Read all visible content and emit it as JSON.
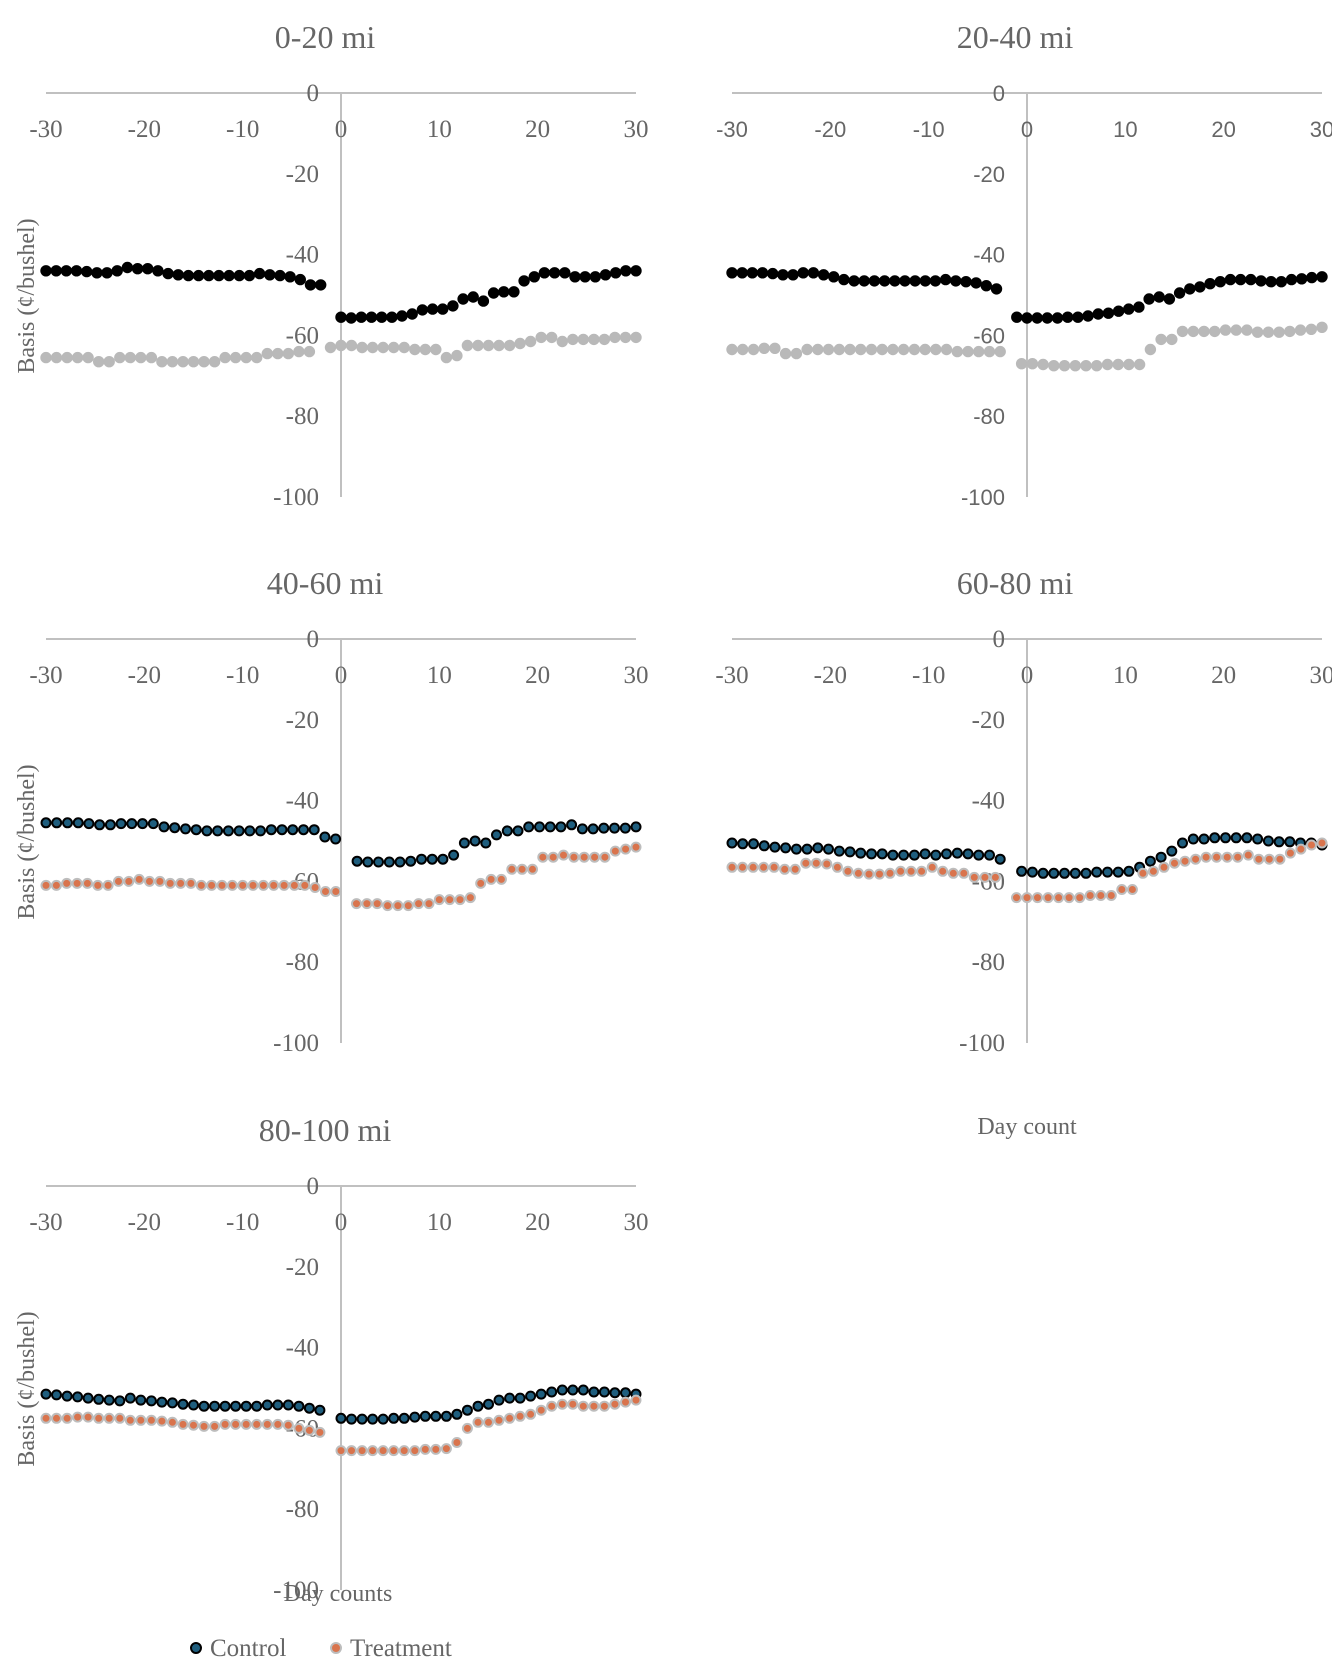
{
  "figure": {
    "y_axis_label": "Basis (¢/bushel)",
    "day_count_label": "Day count",
    "day_counts_label": "Day counts"
  },
  "legend": {
    "items": [
      {
        "label": "Control"
      },
      {
        "label": "Treatment"
      }
    ]
  },
  "colors": {
    "axis": "#c0c0c0",
    "text": "#666666",
    "panel1_control": "#000000",
    "panel1_treatment": "#b9b9b9",
    "blue_fill": "#1f5e7e",
    "blue_stroke": "#000000",
    "orange_fill": "#d9744d",
    "orange_stroke": "#bdbdbd"
  },
  "chart_data": [
    {
      "type": "scatter",
      "title": "0-20 mi",
      "xlim": [
        -30,
        30
      ],
      "ylim": [
        -100,
        0
      ],
      "xticks": [
        -30,
        -20,
        -10,
        0,
        10,
        20,
        30
      ],
      "yticks": [
        0,
        -20,
        -40,
        -60,
        -80,
        -100
      ],
      "tick_font": "serif",
      "series": [
        {
          "name": "Control",
          "style": "black",
          "values": [
            -44.0,
            -44.0,
            -44.0,
            -44.0,
            -44.2,
            -44.5,
            -44.5,
            -44.0,
            -43.2,
            -43.5,
            -43.5,
            -44.0,
            -44.7,
            -45.0,
            -45.2,
            -45.2,
            -45.2,
            -45.2,
            -45.2,
            -45.2,
            -45.2,
            -44.7,
            -45.0,
            -45.2,
            -45.5,
            -46.2,
            -47.5,
            -47.5,
            null,
            -55.5,
            -55.7,
            -55.5,
            -55.5,
            -55.5,
            -55.5,
            -55.2,
            -54.7,
            -53.7,
            -53.5,
            -53.5,
            -52.7,
            -51.0,
            -50.5,
            -51.5,
            -49.5,
            -49.2,
            -49.2,
            -46.5,
            -45.5,
            -44.5,
            -44.5,
            -44.5,
            -45.5,
            -45.5,
            -45.5,
            -45.0,
            -44.5,
            -44.0,
            -44.0
          ]
        },
        {
          "name": "Treatment",
          "style": "gray",
          "values": [
            -65.5,
            -65.5,
            -65.5,
            -65.5,
            -65.5,
            -66.5,
            -66.5,
            -65.5,
            -65.5,
            -65.5,
            -65.5,
            -66.5,
            -66.5,
            -66.5,
            -66.5,
            -66.5,
            -66.5,
            -65.5,
            -65.5,
            -65.5,
            -65.5,
            -64.5,
            -64.5,
            -64.5,
            -64.0,
            -64.0,
            null,
            -63.0,
            -62.5,
            -62.5,
            -63.0,
            -63.0,
            -63.0,
            -63.0,
            -63.0,
            -63.5,
            -63.5,
            -63.5,
            -65.5,
            -65.0,
            -62.5,
            -62.5,
            -62.5,
            -62.5,
            -62.5,
            -62.0,
            -61.5,
            -60.5,
            -60.5,
            -61.5,
            -61.0,
            -61.0,
            -61.0,
            -61.0,
            -60.5,
            -60.5,
            -60.5
          ]
        }
      ]
    },
    {
      "type": "scatter",
      "title": "20-40 mi",
      "xlim": [
        -30,
        30
      ],
      "ylim": [
        -100,
        0
      ],
      "xticks": [
        -30,
        -20,
        -10,
        0,
        10,
        20,
        30
      ],
      "yticks": [
        0,
        -20,
        -40,
        -60,
        -80,
        -100
      ],
      "tick_font": "sans",
      "series": [
        {
          "name": "Control",
          "style": "black",
          "values": [
            -44.5,
            -44.5,
            -44.5,
            -44.5,
            -44.7,
            -45.0,
            -45.0,
            -44.5,
            -44.5,
            -45.0,
            -45.5,
            -46.2,
            -46.5,
            -46.5,
            -46.5,
            -46.5,
            -46.5,
            -46.5,
            -46.5,
            -46.5,
            -46.5,
            -46.2,
            -46.5,
            -46.7,
            -47.0,
            -47.7,
            -48.5,
            null,
            -55.5,
            -55.7,
            -55.7,
            -55.7,
            -55.7,
            -55.5,
            -55.5,
            -55.2,
            -54.7,
            -54.5,
            -54.0,
            -53.5,
            -53.0,
            -51.0,
            -50.5,
            -51.0,
            -49.5,
            -48.5,
            -48.0,
            -47.2,
            -46.7,
            -46.2,
            -46.2,
            -46.2,
            -46.5,
            -46.7,
            -46.7,
            -46.2,
            -46.0,
            -45.7,
            -45.5
          ]
        },
        {
          "name": "Treatment",
          "style": "gray",
          "values": [
            -63.5,
            -63.5,
            -63.5,
            -63.2,
            -63.2,
            -64.5,
            -64.5,
            -63.5,
            -63.5,
            -63.5,
            -63.5,
            -63.5,
            -63.5,
            -63.5,
            -63.5,
            -63.5,
            -63.5,
            -63.5,
            -63.5,
            -63.5,
            -63.5,
            -64.0,
            -64.0,
            -64.0,
            -64.0,
            -64.0,
            null,
            -67.0,
            -67.0,
            -67.2,
            -67.5,
            -67.5,
            -67.5,
            -67.5,
            -67.5,
            -67.2,
            -67.2,
            -67.2,
            -67.2,
            -63.5,
            -61.0,
            -61.0,
            -59.0,
            -59.0,
            -59.0,
            -59.0,
            -58.7,
            -58.7,
            -58.7,
            -59.2,
            -59.2,
            -59.2,
            -59.0,
            -58.7,
            -58.5,
            -58.0
          ]
        }
      ]
    },
    {
      "type": "scatter",
      "title": "40-60 mi",
      "xlim": [
        -30,
        30
      ],
      "ylim": [
        -100,
        0
      ],
      "xticks": [
        -30,
        -20,
        -10,
        0,
        10,
        20,
        30
      ],
      "yticks": [
        0,
        -20,
        -40,
        -60,
        -80,
        -100
      ],
      "tick_font": "serif",
      "series": [
        {
          "name": "Control",
          "style": "blue",
          "values": [
            -45.5,
            -45.5,
            -45.5,
            -45.5,
            -45.7,
            -46.0,
            -46.0,
            -45.7,
            -45.7,
            -45.7,
            -45.7,
            -46.5,
            -46.7,
            -47.0,
            -47.2,
            -47.5,
            -47.5,
            -47.5,
            -47.5,
            -47.5,
            -47.5,
            -47.2,
            -47.2,
            -47.2,
            -47.2,
            -47.2,
            -49.0,
            -49.5,
            null,
            -55.0,
            -55.2,
            -55.2,
            -55.2,
            -55.2,
            -55.0,
            -54.5,
            -54.5,
            -54.5,
            -53.5,
            -50.5,
            -50.0,
            -50.5,
            -48.5,
            -47.5,
            -47.5,
            -46.5,
            -46.5,
            -46.5,
            -46.5,
            -46.0,
            -47.0,
            -47.0,
            -46.8,
            -46.8,
            -46.8,
            -46.5
          ]
        },
        {
          "name": "Treatment",
          "style": "orange",
          "values": [
            -61.0,
            -61.0,
            -60.5,
            -60.5,
            -60.5,
            -61.0,
            -61.0,
            -60.0,
            -60.0,
            -59.5,
            -60.0,
            -60.0,
            -60.5,
            -60.5,
            -60.5,
            -61.0,
            -61.0,
            -61.0,
            -61.0,
            -61.0,
            -61.0,
            -61.0,
            -61.0,
            -61.0,
            -61.0,
            -61.0,
            -61.5,
            -62.5,
            -62.5,
            null,
            -65.5,
            -65.5,
            -65.5,
            -66.0,
            -66.0,
            -66.0,
            -65.5,
            -65.5,
            -64.5,
            -64.5,
            -64.5,
            -64.0,
            -60.5,
            -59.5,
            -59.5,
            -57.0,
            -57.0,
            -57.0,
            -54.0,
            -54.0,
            -53.5,
            -54.0,
            -54.0,
            -54.0,
            -54.0,
            -52.5,
            -52.0,
            -51.5
          ]
        }
      ]
    },
    {
      "type": "scatter",
      "title": "60-80 mi",
      "xlim": [
        -30,
        30
      ],
      "ylim": [
        -100,
        0
      ],
      "xticks": [
        -30,
        -20,
        -10,
        0,
        10,
        20,
        30
      ],
      "yticks": [
        0,
        -20,
        -40,
        -60,
        -80,
        -100
      ],
      "tick_font": "serif",
      "series": [
        {
          "name": "Control",
          "style": "blue",
          "values": [
            -50.5,
            -50.7,
            -50.7,
            -51.2,
            -51.5,
            -51.7,
            -52.0,
            -52.0,
            -51.7,
            -52.0,
            -52.5,
            -52.7,
            -53.0,
            -53.2,
            -53.2,
            -53.5,
            -53.5,
            -53.5,
            -53.2,
            -53.5,
            -53.2,
            -53.0,
            -53.2,
            -53.5,
            -53.5,
            -54.5,
            null,
            -57.5,
            -57.7,
            -58.0,
            -58.0,
            -58.0,
            -58.0,
            -58.0,
            -57.7,
            -57.7,
            -57.7,
            -57.5,
            -56.5,
            -55.0,
            -54.0,
            -52.5,
            -50.5,
            -49.5,
            -49.5,
            -49.2,
            -49.2,
            -49.2,
            -49.2,
            -49.5,
            -50.0,
            -50.2,
            -50.2,
            -50.5,
            -50.5,
            -51.0
          ]
        },
        {
          "name": "Treatment",
          "style": "orange",
          "values": [
            -56.5,
            -56.5,
            -56.5,
            -56.5,
            -56.5,
            -57.0,
            -57.0,
            -55.5,
            -55.5,
            -55.7,
            -56.5,
            -57.5,
            -58.0,
            -58.2,
            -58.2,
            -58.0,
            -57.5,
            -57.5,
            -57.5,
            -56.5,
            -57.5,
            -58.0,
            -58.0,
            -59.0,
            -59.0,
            -59.0,
            null,
            -64.0,
            -64.0,
            -64.0,
            -64.0,
            -64.0,
            -64.0,
            -64.0,
            -63.5,
            -63.5,
            -63.5,
            -62.0,
            -62.0,
            -58.0,
            -57.5,
            -56.5,
            -55.5,
            -55.0,
            -54.5,
            -54.0,
            -54.0,
            -54.0,
            -54.0,
            -53.5,
            -54.5,
            -54.5,
            -54.5,
            -53.0,
            -52.0,
            -51.0,
            -50.5
          ]
        }
      ]
    },
    {
      "type": "scatter",
      "title": "80-100 mi",
      "xlim": [
        -30,
        30
      ],
      "ylim": [
        -100,
        0
      ],
      "xticks": [
        -30,
        -20,
        -10,
        0,
        10,
        20,
        30
      ],
      "yticks": [
        0,
        -20,
        -40,
        -60,
        -80,
        -100
      ],
      "tick_font": "serif",
      "series": [
        {
          "name": "Control",
          "style": "blue",
          "values": [
            -51.5,
            -51.7,
            -52.0,
            -52.2,
            -52.5,
            -52.8,
            -53.0,
            -53.2,
            -52.5,
            -53.0,
            -53.2,
            -53.5,
            -53.7,
            -54.0,
            -54.2,
            -54.5,
            -54.5,
            -54.5,
            -54.5,
            -54.5,
            -54.5,
            -54.2,
            -54.2,
            -54.2,
            -54.5,
            -55.0,
            -55.5,
            null,
            -57.5,
            -57.7,
            -57.7,
            -57.7,
            -57.7,
            -57.5,
            -57.5,
            -57.2,
            -57.0,
            -57.0,
            -57.0,
            -56.5,
            -55.5,
            -54.5,
            -54.0,
            -53.0,
            -52.5,
            -52.5,
            -52.0,
            -51.5,
            -51.0,
            -50.5,
            -50.5,
            -50.5,
            -51.0,
            -51.0,
            -51.2,
            -51.2,
            -51.5
          ]
        },
        {
          "name": "Treatment",
          "style": "orange",
          "values": [
            -57.5,
            -57.5,
            -57.5,
            -57.2,
            -57.2,
            -57.5,
            -57.5,
            -57.5,
            -58.0,
            -58.0,
            -58.0,
            -58.2,
            -58.5,
            -59.0,
            -59.2,
            -59.5,
            -59.5,
            -59.0,
            -59.0,
            -59.0,
            -59.0,
            -59.0,
            -59.0,
            -59.2,
            -60.0,
            -60.5,
            -61.0,
            null,
            -65.5,
            -65.5,
            -65.5,
            -65.5,
            -65.5,
            -65.5,
            -65.5,
            -65.5,
            -65.2,
            -65.2,
            -65.0,
            -63.5,
            -60.0,
            -58.5,
            -58.5,
            -58.0,
            -57.5,
            -57.0,
            -56.5,
            -55.5,
            -54.5,
            -54.0,
            -54.0,
            -54.5,
            -54.5,
            -54.5,
            -54.0,
            -53.5,
            -53.0
          ]
        }
      ]
    }
  ]
}
